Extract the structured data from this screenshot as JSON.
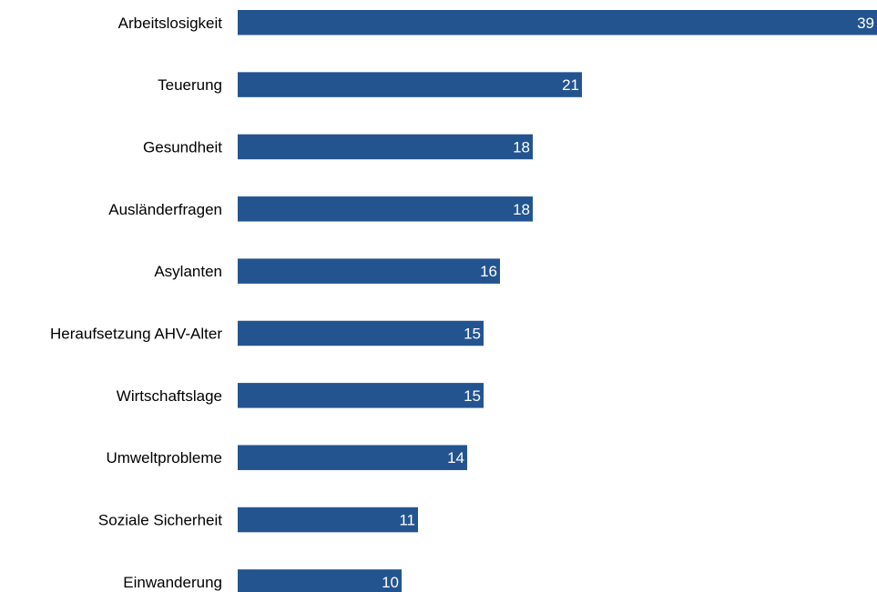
{
  "chart_data": {
    "type": "bar",
    "orientation": "horizontal",
    "categories": [
      "Arbeitslosigkeit",
      "Teuerung",
      "Gesundheit",
      "Ausländerfragen",
      "Asylanten",
      "Heraufsetzung AHV-Alter",
      "Wirtschaftslage",
      "Umweltprobleme",
      "Soziale Sicherheit",
      "Einwanderung"
    ],
    "values": [
      39,
      21,
      18,
      18,
      16,
      15,
      15,
      14,
      11,
      10
    ],
    "xlim": [
      0,
      39
    ],
    "grid": false,
    "legend": "none",
    "data_labels": "inside-end",
    "bar_color": "#23548f",
    "label_color": "#000000",
    "value_label_color": "#ffffff"
  }
}
